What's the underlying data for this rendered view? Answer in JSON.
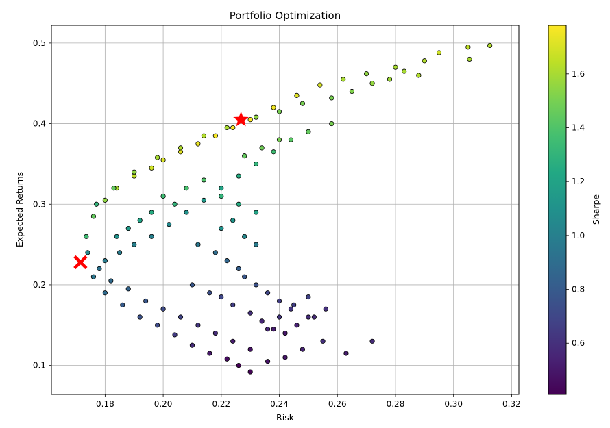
{
  "chart_data": {
    "type": "scatter",
    "title": "Portfolio Optimization",
    "xlabel": "Risk",
    "ylabel": "Expected Returns",
    "xlim": [
      0.1615,
      0.3225
    ],
    "ylim": [
      0.064,
      0.522
    ],
    "xticks": [
      "0.18",
      "0.20",
      "0.22",
      "0.24",
      "0.26",
      "0.28",
      "0.30",
      "0.32"
    ],
    "yticks": [
      "0.1",
      "0.2",
      "0.3",
      "0.4",
      "0.5"
    ],
    "grid": true,
    "colorbar": {
      "label": "Sharpe",
      "colormap": "viridis",
      "range": [
        0.41,
        1.78
      ],
      "ticks": [
        "0.6",
        "0.8",
        "1.0",
        "1.2",
        "1.4",
        "1.6"
      ]
    },
    "series": [
      {
        "marker": "circle",
        "edgecolor": "#000000",
        "x": [
          0.1715,
          0.1735,
          0.176,
          0.18,
          0.184,
          0.19,
          0.196,
          0.2,
          0.206,
          0.212,
          0.218,
          0.224,
          0.23,
          0.238,
          0.246,
          0.254,
          0.262,
          0.27,
          0.28,
          0.29,
          0.305,
          0.3055,
          0.3125,
          0.295,
          0.288,
          0.283,
          0.278,
          0.272,
          0.265,
          0.258,
          0.248,
          0.24,
          0.232,
          0.222,
          0.214,
          0.206,
          0.198,
          0.19,
          0.183,
          0.177,
          0.174,
          0.176,
          0.18,
          0.186,
          0.192,
          0.198,
          0.204,
          0.21,
          0.216,
          0.222,
          0.226,
          0.23,
          0.236,
          0.242,
          0.248,
          0.255,
          0.263,
          0.272,
          0.258,
          0.25,
          0.244,
          0.238,
          0.232,
          0.226,
          0.22,
          0.214,
          0.208,
          0.202,
          0.196,
          0.19,
          0.185,
          0.18,
          0.178,
          0.182,
          0.188,
          0.194,
          0.2,
          0.206,
          0.212,
          0.218,
          0.224,
          0.23,
          0.236,
          0.24,
          0.245,
          0.25,
          0.256,
          0.212,
          0.218,
          0.222,
          0.226,
          0.228,
          0.232,
          0.236,
          0.24,
          0.244,
          0.25,
          0.204,
          0.2,
          0.196,
          0.192,
          0.188,
          0.184,
          0.208,
          0.214,
          0.22,
          0.226,
          0.232,
          0.21,
          0.216,
          0.22,
          0.224,
          0.23,
          0.234,
          0.238,
          0.242,
          0.246,
          0.252,
          0.22,
          0.224,
          0.228,
          0.232,
          0.228,
          0.234,
          0.24
        ],
        "y": [
          0.228,
          0.26,
          0.285,
          0.305,
          0.32,
          0.335,
          0.345,
          0.355,
          0.365,
          0.375,
          0.385,
          0.395,
          0.405,
          0.42,
          0.435,
          0.448,
          0.455,
          0.462,
          0.47,
          0.478,
          0.495,
          0.48,
          0.497,
          0.488,
          0.46,
          0.465,
          0.455,
          0.45,
          0.44,
          0.432,
          0.425,
          0.415,
          0.408,
          0.395,
          0.385,
          0.37,
          0.358,
          0.34,
          0.32,
          0.3,
          0.24,
          0.21,
          0.19,
          0.175,
          0.16,
          0.15,
          0.138,
          0.125,
          0.115,
          0.108,
          0.1,
          0.092,
          0.105,
          0.11,
          0.12,
          0.13,
          0.115,
          0.13,
          0.4,
          0.39,
          0.38,
          0.365,
          0.35,
          0.335,
          0.32,
          0.305,
          0.29,
          0.275,
          0.26,
          0.25,
          0.24,
          0.23,
          0.22,
          0.205,
          0.195,
          0.18,
          0.17,
          0.16,
          0.15,
          0.14,
          0.13,
          0.12,
          0.145,
          0.16,
          0.175,
          0.185,
          0.17,
          0.25,
          0.24,
          0.23,
          0.22,
          0.21,
          0.2,
          0.19,
          0.18,
          0.17,
          0.16,
          0.3,
          0.31,
          0.29,
          0.28,
          0.27,
          0.26,
          0.32,
          0.33,
          0.31,
          0.3,
          0.29,
          0.2,
          0.19,
          0.185,
          0.175,
          0.165,
          0.155,
          0.145,
          0.14,
          0.15,
          0.16,
          0.27,
          0.28,
          0.26,
          0.25,
          0.36,
          0.37,
          0.38
        ],
        "sharpe": [
          1.2,
          1.35,
          1.45,
          1.55,
          1.6,
          1.65,
          1.68,
          1.7,
          1.72,
          1.74,
          1.76,
          1.77,
          1.78,
          1.75,
          1.72,
          1.7,
          1.6,
          1.55,
          1.6,
          1.62,
          1.65,
          1.6,
          1.62,
          1.68,
          1.62,
          1.6,
          1.58,
          1.56,
          1.52,
          1.5,
          1.5,
          1.5,
          1.55,
          1.6,
          1.62,
          1.62,
          1.6,
          1.55,
          1.45,
          1.3,
          1.05,
          0.95,
          0.88,
          0.8,
          0.75,
          0.72,
          0.65,
          0.58,
          0.5,
          0.45,
          0.41,
          0.42,
          0.48,
          0.5,
          0.55,
          0.6,
          0.52,
          0.58,
          1.5,
          1.45,
          1.42,
          1.35,
          1.3,
          1.25,
          1.2,
          1.15,
          1.1,
          1.05,
          1.0,
          1.0,
          0.98,
          0.98,
          0.92,
          0.88,
          0.85,
          0.78,
          0.72,
          0.68,
          0.62,
          0.58,
          0.52,
          0.48,
          0.56,
          0.62,
          0.66,
          0.68,
          0.6,
          0.95,
          0.9,
          0.86,
          0.82,
          0.78,
          0.75,
          0.7,
          0.66,
          0.62,
          0.58,
          1.3,
          1.35,
          1.25,
          1.2,
          1.15,
          1.1,
          1.38,
          1.4,
          1.3,
          1.25,
          1.2,
          0.78,
          0.74,
          0.7,
          0.66,
          0.6,
          0.56,
          0.52,
          0.5,
          0.54,
          0.58,
          1.1,
          1.12,
          1.05,
          0.98,
          1.45,
          1.48,
          1.5
        ]
      }
    ],
    "highlights": [
      {
        "marker": "star",
        "color": "#ff0000",
        "x": 0.2268,
        "y": 0.405
      },
      {
        "marker": "x",
        "color": "#ff0000",
        "x": 0.1715,
        "y": 0.228
      }
    ]
  }
}
